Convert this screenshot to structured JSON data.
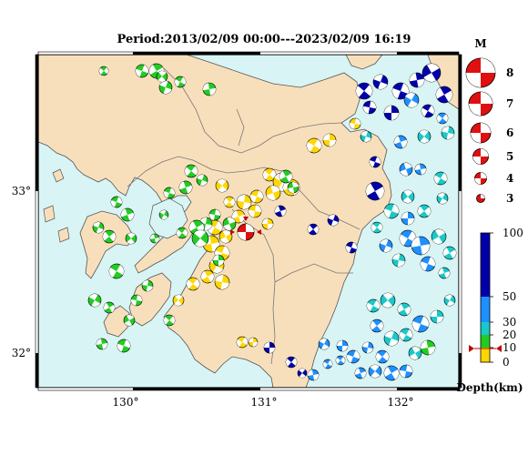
{
  "title": "Period:2013/02/09 00:00---2023/02/09 16:19",
  "map": {
    "lon_ticks": [
      "130°",
      "131°",
      "132°"
    ],
    "lat_ticks": [
      "33°",
      "32°"
    ]
  },
  "magnitude_legend": {
    "header": "M",
    "values": [
      "8",
      "7",
      "6",
      "5",
      "4",
      "3"
    ]
  },
  "depth_legend": {
    "labels": [
      "100",
      "50",
      "30",
      "20",
      "10",
      "0"
    ],
    "unit_label": "Depth(km)",
    "bands": [
      {
        "from": 0,
        "to": 10,
        "color": "#ffd700"
      },
      {
        "from": 10,
        "to": 20,
        "color": "#22cc22"
      },
      {
        "from": 20,
        "to": 30,
        "color": "#19c9c9"
      },
      {
        "from": 30,
        "to": 50,
        "color": "#1e90ff"
      },
      {
        "from": 50,
        "to": 100,
        "color": "#0000aa"
      }
    ]
  },
  "colors": {
    "sea": "#d8f4f4",
    "land": "#f8dfbc",
    "boundary": "#666666",
    "main_shock": "#e01010"
  }
}
